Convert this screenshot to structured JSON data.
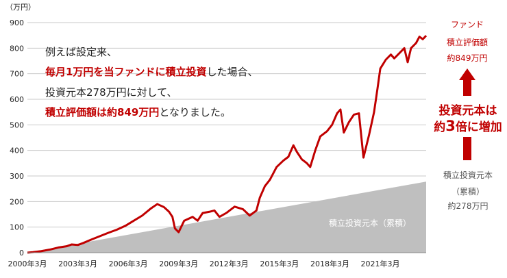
{
  "chart_data": {
    "type": "area",
    "y_unit_label": "（万円）",
    "ylim": [
      0,
      900
    ],
    "yticks": [
      "0",
      "100",
      "200",
      "300",
      "400",
      "500",
      "600",
      "700",
      "800",
      "900"
    ],
    "xlim": [
      2000.17,
      2023.9
    ],
    "xticks": [
      {
        "x": 2000.17,
        "label": "2000年3月"
      },
      {
        "x": 2003.17,
        "label": "2003年3月"
      },
      {
        "x": 2006.17,
        "label": "2006年3月"
      },
      {
        "x": 2009.17,
        "label": "2009年3月"
      },
      {
        "x": 2012.17,
        "label": "2012年3月"
      },
      {
        "x": 2015.17,
        "label": "2015年3月"
      },
      {
        "x": 2018.17,
        "label": "2018年3月"
      },
      {
        "x": 2021.17,
        "label": "2021年3月"
      }
    ],
    "grid": "horizontal",
    "series": [
      {
        "name": "積立投資元本（累積）",
        "kind": "area",
        "color": "#bfbfbf",
        "points": [
          [
            2000.17,
            0
          ],
          [
            2023.9,
            278
          ]
        ]
      },
      {
        "name": "",
        "kind": "line",
        "color": "#c00000",
        "points": [
          [
            2000.17,
            0
          ],
          [
            2000.5,
            2
          ],
          [
            2001.0,
            6
          ],
          [
            2001.5,
            12
          ],
          [
            2002.0,
            20
          ],
          [
            2002.5,
            25
          ],
          [
            2002.8,
            32
          ],
          [
            2003.17,
            30
          ],
          [
            2003.5,
            38
          ],
          [
            2004.0,
            52
          ],
          [
            2004.5,
            65
          ],
          [
            2005.0,
            78
          ],
          [
            2005.5,
            90
          ],
          [
            2006.0,
            105
          ],
          [
            2006.5,
            125
          ],
          [
            2007.0,
            145
          ],
          [
            2007.5,
            172
          ],
          [
            2007.9,
            190
          ],
          [
            2008.3,
            178
          ],
          [
            2008.6,
            160
          ],
          [
            2008.8,
            140
          ],
          [
            2008.95,
            95
          ],
          [
            2009.17,
            80
          ],
          [
            2009.5,
            125
          ],
          [
            2010.0,
            140
          ],
          [
            2010.3,
            125
          ],
          [
            2010.6,
            155
          ],
          [
            2011.0,
            160
          ],
          [
            2011.3,
            165
          ],
          [
            2011.6,
            140
          ],
          [
            2012.0,
            155
          ],
          [
            2012.5,
            180
          ],
          [
            2013.0,
            170
          ],
          [
            2013.4,
            145
          ],
          [
            2013.8,
            165
          ],
          [
            2014.0,
            215
          ],
          [
            2014.3,
            260
          ],
          [
            2014.6,
            285
          ],
          [
            2015.0,
            335
          ],
          [
            2015.4,
            360
          ],
          [
            2015.7,
            375
          ],
          [
            2016.0,
            420
          ],
          [
            2016.2,
            395
          ],
          [
            2016.5,
            365
          ],
          [
            2016.8,
            350
          ],
          [
            2017.0,
            335
          ],
          [
            2017.3,
            400
          ],
          [
            2017.6,
            455
          ],
          [
            2018.0,
            475
          ],
          [
            2018.3,
            500
          ],
          [
            2018.6,
            545
          ],
          [
            2018.8,
            560
          ],
          [
            2019.0,
            470
          ],
          [
            2019.3,
            510
          ],
          [
            2019.6,
            540
          ],
          [
            2019.9,
            545
          ],
          [
            2020.17,
            372
          ],
          [
            2020.5,
            460
          ],
          [
            2020.8,
            550
          ],
          [
            2021.0,
            640
          ],
          [
            2021.17,
            720
          ],
          [
            2021.5,
            755
          ],
          [
            2021.8,
            775
          ],
          [
            2022.0,
            760
          ],
          [
            2022.3,
            780
          ],
          [
            2022.6,
            800
          ],
          [
            2022.8,
            745
          ],
          [
            2023.0,
            800
          ],
          [
            2023.3,
            820
          ],
          [
            2023.5,
            845
          ],
          [
            2023.7,
            835
          ],
          [
            2023.9,
            849
          ]
        ]
      }
    ],
    "annotations": {
      "area_label": "積立投資元本（累積）",
      "note_line1": "例えば設定来、",
      "note_line2_red": "毎月1万円を当ファンドに積立投資",
      "note_line2_rest": "した場合、",
      "note_line3": "投資元本278万円に対して、",
      "note_line4_red": "積立評価額は約849万円",
      "note_line4_rest": "となりました。",
      "fund_label": "ファンド",
      "fund_value_label": "積立評価額",
      "fund_value": "約849万円",
      "multiplier_line1": "投資元本は",
      "multiplier_line2_a": "約",
      "multiplier_line2_b": "3",
      "multiplier_line2_c": "倍に増加",
      "principal_label": "積立投資元本",
      "principal_sub": "（累積）",
      "principal_value": "約278万円"
    },
    "colors": {
      "fund": "#c00000",
      "principal": "#bfbfbf",
      "grid": "#c8c8c8"
    }
  }
}
